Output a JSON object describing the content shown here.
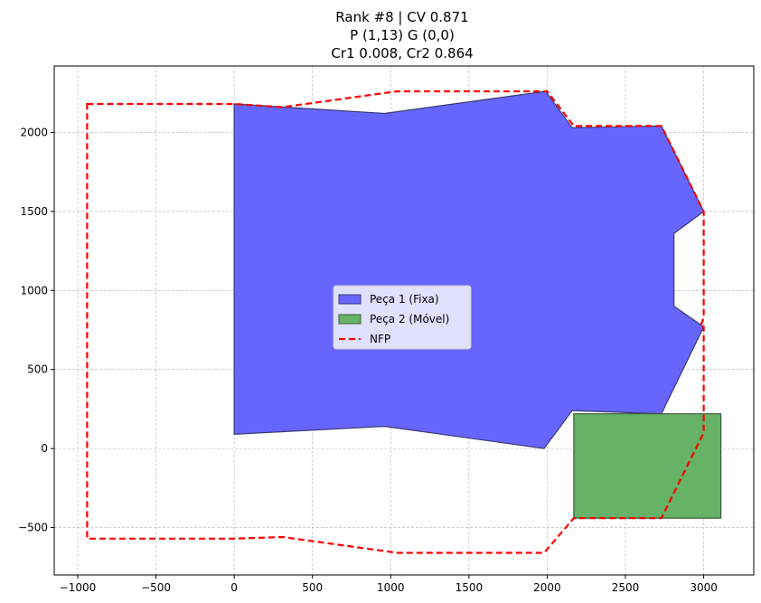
{
  "chart_data": {
    "type": "polygon-overlay",
    "title_lines": [
      "Rank #8 | CV 0.871",
      "P (1,13) G (0,0)",
      "Cr1 0.008, Cr2 0.864"
    ],
    "xlim": [
      -1150,
      3320
    ],
    "ylim": [
      -800,
      2420
    ],
    "xticks": [
      -1000,
      -500,
      0,
      500,
      1000,
      1500,
      2000,
      2500,
      3000
    ],
    "yticks": [
      -500,
      0,
      500,
      1000,
      1500,
      2000
    ],
    "grid": true,
    "legend_position": "center",
    "series": [
      {
        "name": "Peça 1 (Fixa)",
        "kind": "filled-polygon",
        "fill": "#6666ff",
        "edge": "#3b3b72",
        "points": [
          [
            0,
            2180
          ],
          [
            960,
            2120
          ],
          [
            1990,
            2260
          ],
          [
            2160,
            2030
          ],
          [
            2730,
            2040
          ],
          [
            3000,
            1500
          ],
          [
            2810,
            1360
          ],
          [
            2810,
            900
          ],
          [
            3000,
            770
          ],
          [
            2730,
            220
          ],
          [
            2160,
            240
          ],
          [
            1980,
            0
          ],
          [
            960,
            140
          ],
          [
            0,
            90
          ]
        ]
      },
      {
        "name": "Peça 2 (Móvel)",
        "kind": "filled-polygon",
        "fill": "#66b266",
        "edge": "#3b5a3b",
        "points": [
          [
            2170,
            220
          ],
          [
            3110,
            220
          ],
          [
            3110,
            -440
          ],
          [
            2170,
            -440
          ]
        ]
      },
      {
        "name": "NFP",
        "kind": "dashed-outline",
        "color": "#ff0000",
        "points": [
          [
            -940,
            2180
          ],
          [
            0,
            2180
          ],
          [
            310,
            2160
          ],
          [
            1040,
            2260
          ],
          [
            2000,
            2260
          ],
          [
            2170,
            2040
          ],
          [
            2730,
            2040
          ],
          [
            3000,
            1500
          ],
          [
            3000,
            830
          ],
          [
            2980,
            770
          ],
          [
            3000,
            770
          ],
          [
            3000,
            100
          ],
          [
            2730,
            -440
          ],
          [
            2170,
            -440
          ],
          [
            1980,
            -660
          ],
          [
            1040,
            -660
          ],
          [
            310,
            -560
          ],
          [
            0,
            -570
          ],
          [
            -940,
            -570
          ]
        ]
      }
    ]
  }
}
